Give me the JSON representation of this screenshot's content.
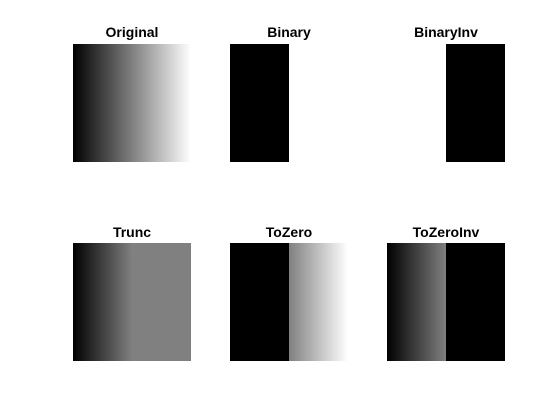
{
  "panels": [
    {
      "title": "Original"
    },
    {
      "title": "Binary"
    },
    {
      "title": "BinaryInv"
    },
    {
      "title": "Trunc"
    },
    {
      "title": "ToZero"
    },
    {
      "title": "ToZeroInv"
    }
  ]
}
